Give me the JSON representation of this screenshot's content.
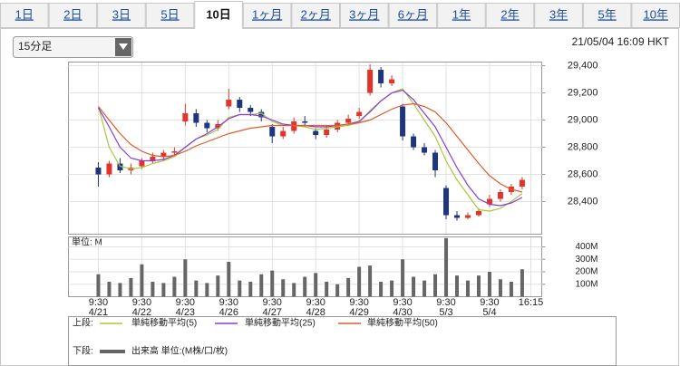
{
  "tabs": [
    "1日",
    "2日",
    "3日",
    "5日",
    "10日",
    "1ヶ月",
    "2ヶ月",
    "3ヶ月",
    "6ヶ月",
    "1年",
    "2年",
    "3年",
    "5年",
    "10年"
  ],
  "selected_tab": 4,
  "interval_select": "15分足",
  "timestamp": "21/05/04 16:09 HKT",
  "chart_data": [
    {
      "type": "candlestick",
      "x": [
        0,
        1,
        2,
        3,
        4,
        5,
        6,
        7,
        8,
        9,
        10,
        11,
        12,
        13,
        14,
        15,
        16,
        17,
        18,
        19,
        20,
        21,
        22,
        23,
        24,
        25,
        26,
        27,
        28,
        29,
        30,
        31,
        32,
        33,
        34,
        35,
        36,
        37,
        38,
        39
      ],
      "open": [
        28650,
        28600,
        28680,
        28630,
        28660,
        28700,
        28730,
        28760,
        28990,
        29050,
        28980,
        28940,
        29100,
        29150,
        29090,
        29060,
        28950,
        28880,
        28920,
        28990,
        28920,
        28890,
        28930,
        28980,
        29030,
        29200,
        29370,
        29270,
        29100,
        28880,
        28800,
        28760,
        28500,
        28300,
        28280,
        28300,
        28380,
        28420,
        28470,
        28510
      ],
      "high": [
        28690,
        28700,
        28720,
        28680,
        28720,
        28760,
        28780,
        28800,
        29120,
        29080,
        29000,
        29000,
        29230,
        29170,
        29110,
        29080,
        28970,
        28950,
        29020,
        29030,
        28940,
        28960,
        29000,
        29040,
        29090,
        29410,
        29390,
        29330,
        29120,
        28900,
        28830,
        28780,
        28520,
        28330,
        28320,
        28350,
        28450,
        28490,
        28530,
        28580
      ],
      "low": [
        28510,
        28580,
        28610,
        28600,
        28640,
        28680,
        28700,
        28740,
        28960,
        28950,
        28910,
        28920,
        29080,
        29060,
        29030,
        28990,
        28830,
        28860,
        28900,
        28950,
        28860,
        28870,
        28910,
        28960,
        29010,
        29180,
        29240,
        29250,
        28850,
        28780,
        28740,
        28580,
        28270,
        28260,
        28270,
        28290,
        28360,
        28400,
        28450,
        28490
      ],
      "close": [
        28600,
        28680,
        28630,
        28650,
        28700,
        28730,
        28760,
        28770,
        29050,
        28980,
        28940,
        28970,
        29150,
        29090,
        29060,
        29020,
        28880,
        28920,
        28990,
        28980,
        28890,
        28930,
        28980,
        29010,
        29060,
        29370,
        29270,
        29300,
        28880,
        28800,
        28760,
        28630,
        28300,
        28280,
        28300,
        28330,
        28420,
        28470,
        28510,
        28560
      ],
      "up_color": "#e3342a",
      "down_color": "#1e3580",
      "series": [
        {
          "name": "単純移動平均(5)",
          "color": "#a8c93a",
          "values": [
            29100,
            28800,
            28660,
            28640,
            28650,
            28680,
            28700,
            28730,
            28800,
            28860,
            28890,
            28930,
            29020,
            29040,
            29040,
            29050,
            28990,
            28960,
            28960,
            28950,
            28930,
            28940,
            28950,
            28960,
            28980,
            29070,
            29140,
            29200,
            29230,
            29120,
            29000,
            28880,
            28700,
            28560,
            28450,
            28340,
            28330,
            28350,
            28400,
            28460
          ]
        },
        {
          "name": "単純移動平均(25)",
          "color": "#8a3bd6",
          "values": [
            29090,
            28950,
            28800,
            28720,
            28700,
            28700,
            28710,
            28740,
            28800,
            28860,
            28900,
            28950,
            29010,
            29040,
            29040,
            29030,
            29000,
            28970,
            28960,
            28960,
            28950,
            28950,
            28960,
            28970,
            28990,
            29060,
            29140,
            29200,
            29220,
            29150,
            29050,
            28950,
            28800,
            28650,
            28520,
            28420,
            28380,
            28370,
            28390,
            28430
          ]
        },
        {
          "name": "単純移動平均(50)",
          "color": "#e05a2a",
          "values": [
            29100,
            29000,
            28900,
            28820,
            28770,
            28740,
            28730,
            28740,
            28770,
            28810,
            28840,
            28870,
            28900,
            28920,
            28940,
            28950,
            28960,
            28960,
            28960,
            28960,
            28960,
            28960,
            28960,
            28970,
            28980,
            29000,
            29040,
            29080,
            29110,
            29120,
            29100,
            29060,
            28980,
            28880,
            28780,
            28680,
            28590,
            28530,
            28490,
            28470
          ]
        }
      ],
      "xlim": [
        -2.75,
        40.8
      ],
      "xticks": [
        {
          "value": 0,
          "label": "9:30",
          "date": "4/21"
        },
        {
          "value": 4,
          "label": "9:30",
          "date": "4/22"
        },
        {
          "value": 8,
          "label": "9:30",
          "date": "4/23"
        },
        {
          "value": 12,
          "label": "9:30",
          "date": "4/26"
        },
        {
          "value": 16,
          "label": "9:30",
          "date": "4/27"
        },
        {
          "value": 20,
          "label": "9:30",
          "date": "4/28"
        },
        {
          "value": 24,
          "label": "9:30",
          "date": "4/29"
        },
        {
          "value": 28,
          "label": "9:30",
          "date": "4/30"
        },
        {
          "value": 32,
          "label": "9:30",
          "date": "5/3"
        },
        {
          "value": 36,
          "label": "9:30",
          "date": "5/4"
        },
        {
          "value": 39.8,
          "label": "16:15"
        }
      ],
      "ylim": [
        28160,
        29427
      ],
      "yticks": [
        {
          "value": 28400,
          "label": "28,400"
        },
        {
          "value": 28600,
          "label": "28,600"
        },
        {
          "value": 28800,
          "label": "28,800"
        },
        {
          "value": 29000,
          "label": "29,000"
        },
        {
          "value": 29200,
          "label": "29,200"
        },
        {
          "value": 29400,
          "label": "29,400"
        }
      ],
      "grid": true,
      "legend_label": "上段:"
    },
    {
      "type": "bar",
      "unit_label": "単位: M",
      "series": [
        {
          "name": "出来高 単位:(M株/口/枚)",
          "color": "#666666",
          "values": [
            180,
            120,
            110,
            150,
            260,
            120,
            110,
            160,
            300,
            130,
            110,
            170,
            280,
            130,
            120,
            180,
            210,
            140,
            110,
            160,
            190,
            120,
            100,
            150,
            240,
            250,
            120,
            130,
            300,
            160,
            130,
            180,
            470,
            170,
            130,
            170,
            200,
            140,
            120,
            220
          ]
        }
      ],
      "ylim": [
        0,
        480
      ],
      "yticks": [
        {
          "value": 100,
          "label": "100M"
        },
        {
          "value": 200,
          "label": "200M"
        },
        {
          "value": 300,
          "label": "300M"
        },
        {
          "value": 400,
          "label": "400M"
        }
      ],
      "grid": true,
      "legend_label": "下段:"
    }
  ]
}
